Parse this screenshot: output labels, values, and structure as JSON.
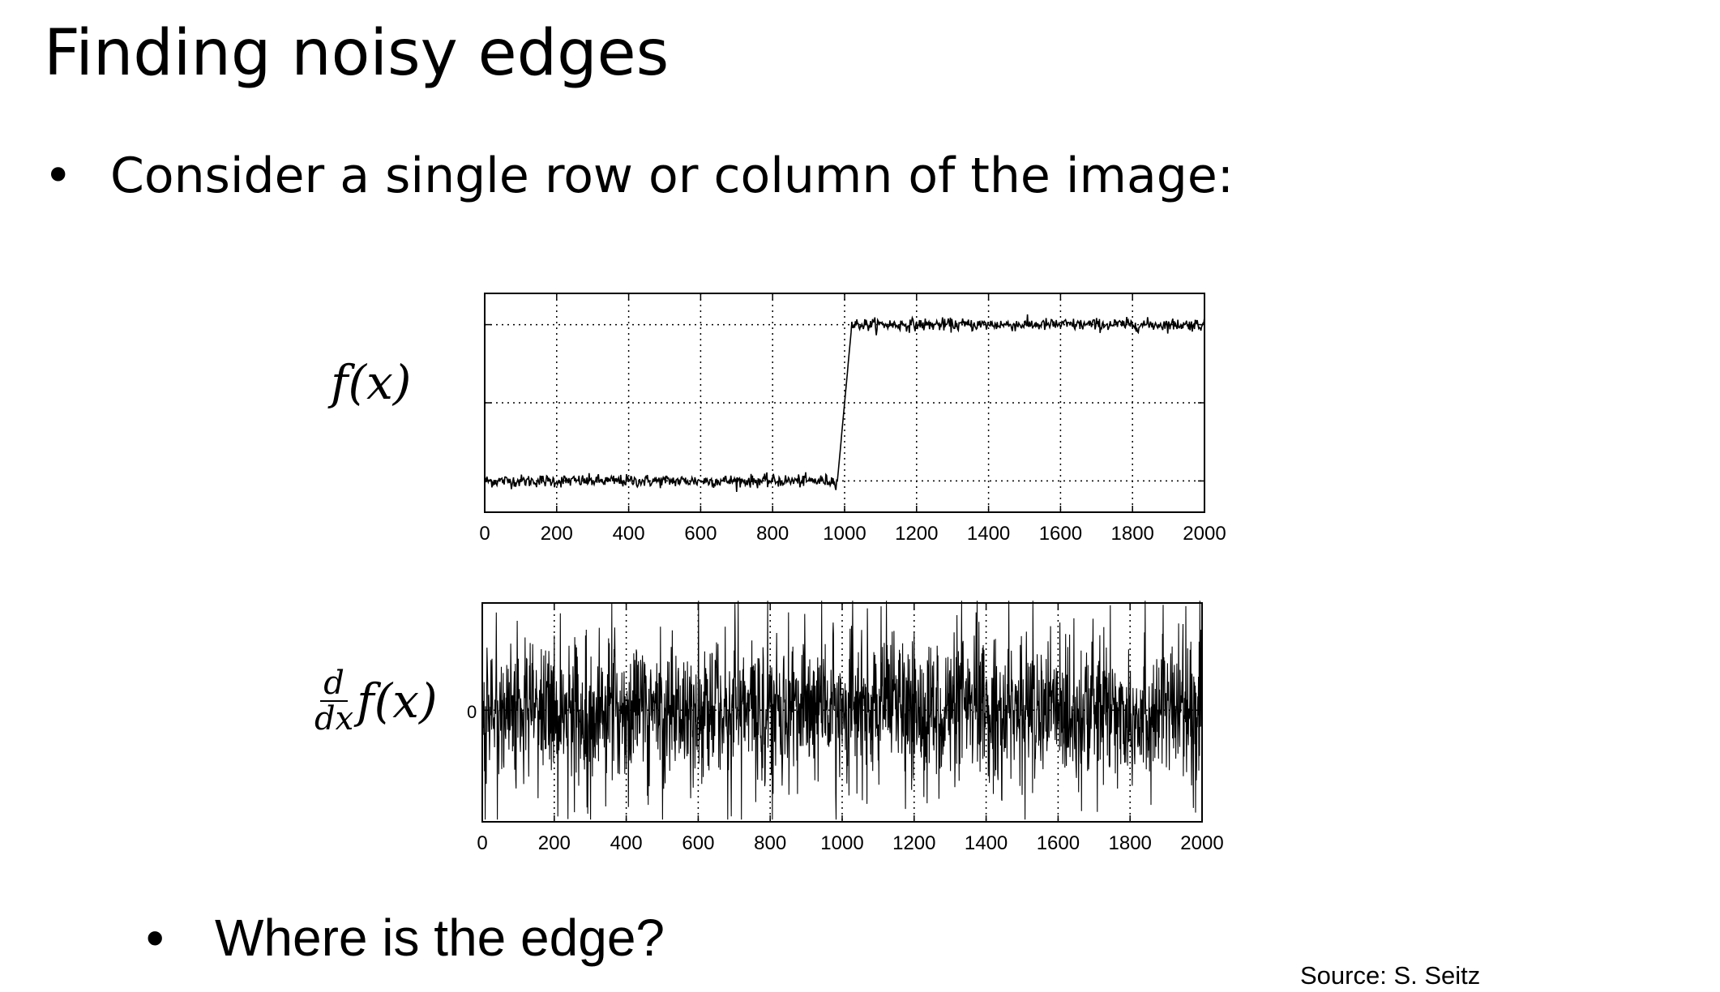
{
  "slide": {
    "title": "Finding noisy edges",
    "bullet1": "Consider a single row or column of the image:",
    "bullet2": "Where is the edge?",
    "bullet_glyph": "•",
    "source": "Source: S. Seitz"
  },
  "chart_data": [
    {
      "type": "line",
      "ylabel": "f(x)",
      "xlim": [
        0,
        2000
      ],
      "x_ticks": [
        0,
        200,
        400,
        600,
        800,
        1000,
        1200,
        1400,
        1600,
        1800,
        2000
      ],
      "grid": true,
      "grid_style": "dotted",
      "series": [
        {
          "description_of_shape": "noisy step",
          "low_level_x_range": [
            0,
            980
          ],
          "step_x_range": [
            980,
            1020
          ],
          "high_level_x_range": [
            1020,
            2000
          ],
          "low_value": 0.0,
          "high_value": 1.0,
          "y_axis_range": [
            -0.2,
            1.2
          ],
          "noise_amplitude": 0.04
        }
      ]
    },
    {
      "type": "line",
      "ylabel_fraction_numerator": "d",
      "ylabel_fraction_denominator": "dx",
      "ylabel": "f(x)",
      "y_tick_label": "0",
      "xlim": [
        0,
        2000
      ],
      "x_ticks": [
        0,
        200,
        400,
        600,
        800,
        1000,
        1200,
        1400,
        1600,
        1800,
        2000
      ],
      "grid": true,
      "grid_style": "dotted",
      "series": [
        {
          "description_of_shape": "zero-mean noise",
          "mean": 0,
          "amplitude": 1.0
        }
      ]
    }
  ]
}
